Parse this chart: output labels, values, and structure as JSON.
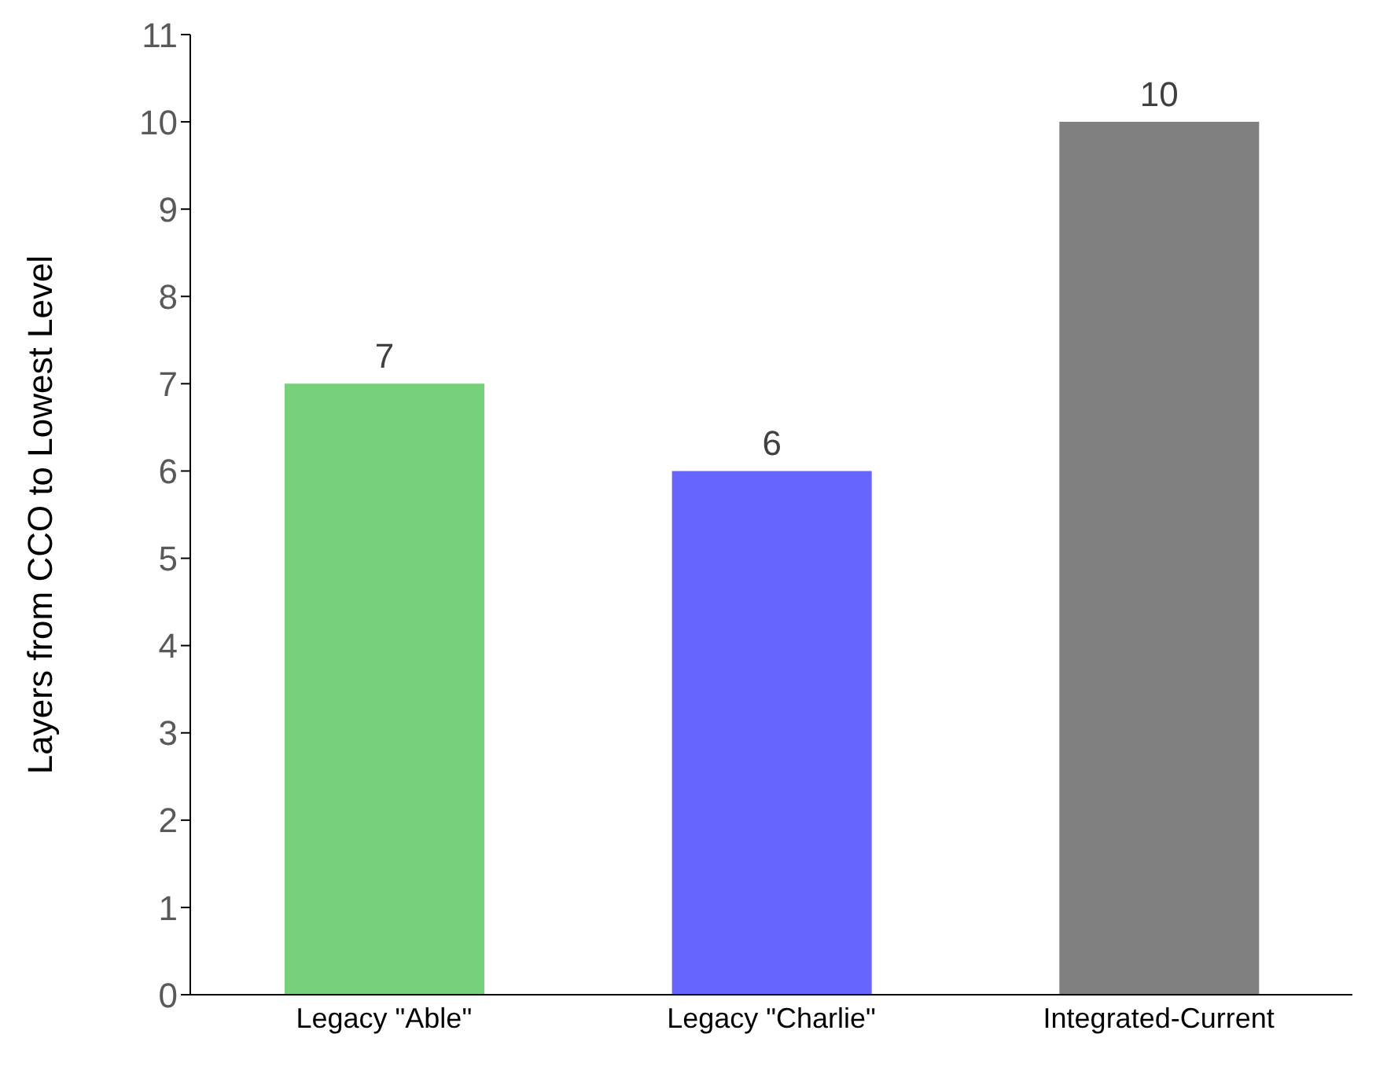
{
  "chart_data": {
    "type": "bar",
    "ylabel": "Layers from CCO to Lowest Level",
    "categories": [
      "Legacy \"Able\"",
      "Legacy \"Charlie\"",
      "Integrated-Current"
    ],
    "values": [
      7,
      6,
      10
    ],
    "colors": [
      "#77d17a",
      "#6666ff",
      "#808080"
    ],
    "ylim": [
      0,
      11
    ],
    "yticks": [
      0,
      1,
      2,
      3,
      4,
      5,
      6,
      7,
      8,
      9,
      10,
      11
    ],
    "grid": false,
    "data_labels": true
  }
}
